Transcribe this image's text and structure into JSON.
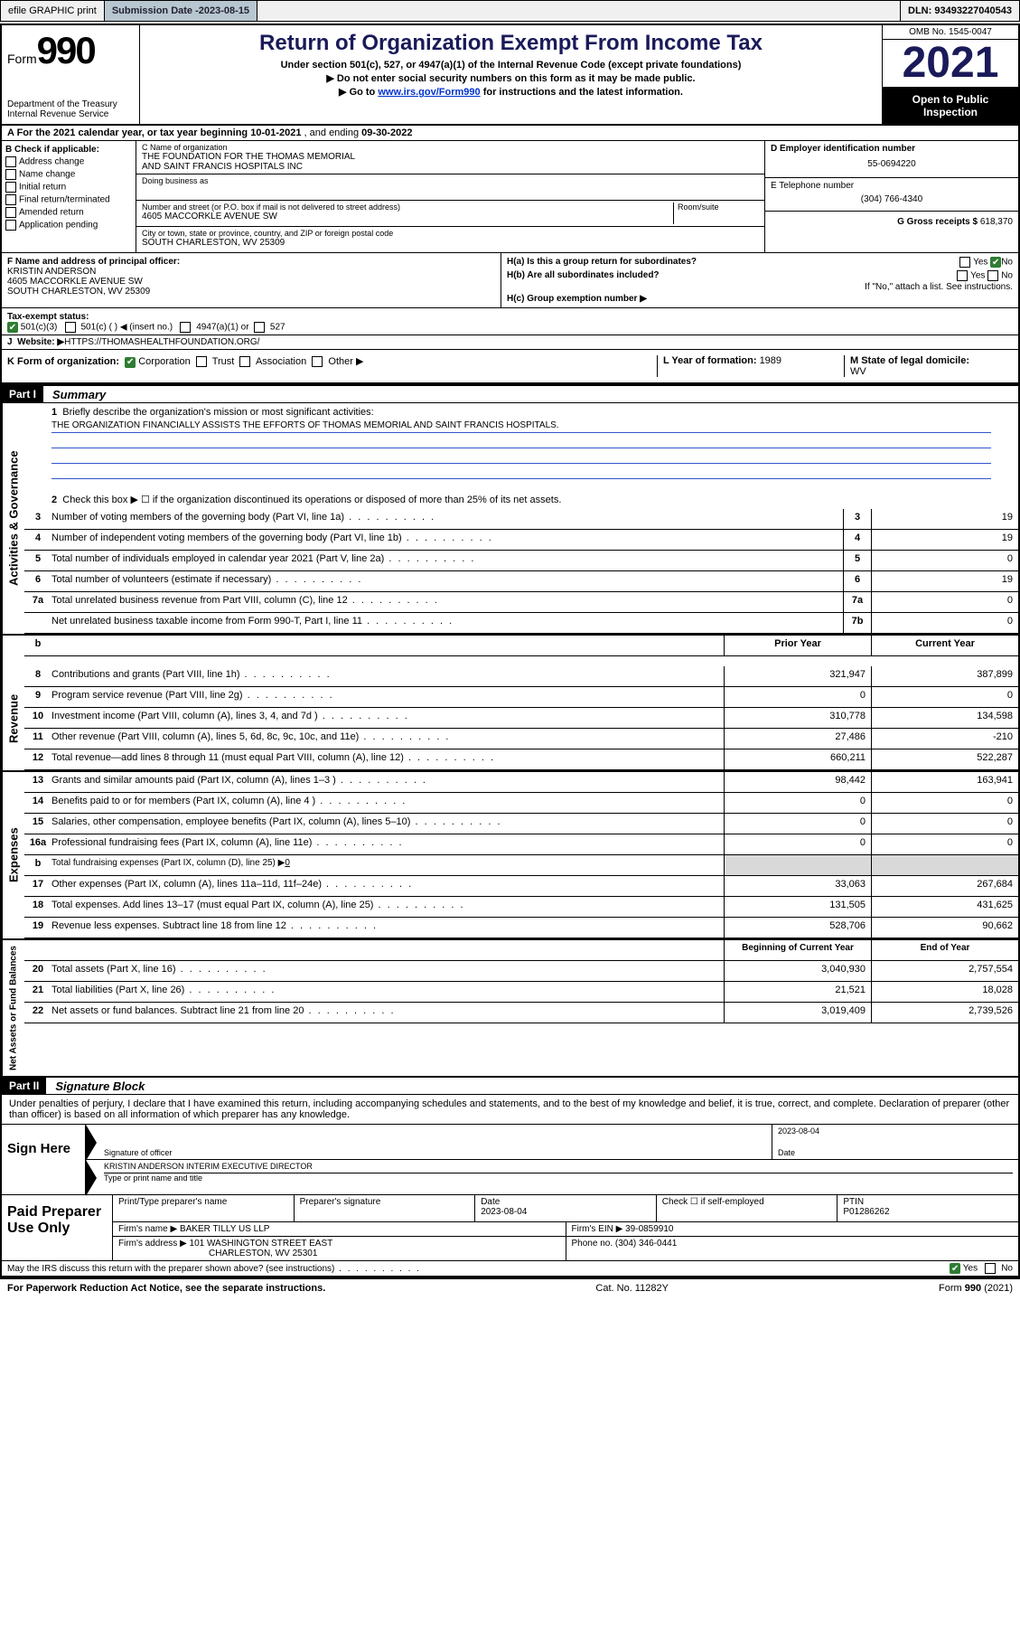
{
  "topbar": {
    "efile": "efile GRAPHIC print",
    "sub_lbl": "Submission Date - ",
    "sub_date": "2023-08-15",
    "dln_lbl": "DLN: ",
    "dln": "93493227040543"
  },
  "hdr": {
    "form_word": "Form",
    "form_num": "990",
    "dept": "Department of the Treasury",
    "irs": "Internal Revenue Service",
    "title": "Return of Organization Exempt From Income Tax",
    "sub1": "Under section 501(c), 527, or 4947(a)(1) of the Internal Revenue Code (except private foundations)",
    "sub2": "Do not enter social security numbers on this form as it may be made public.",
    "sub3_pre": "Go to ",
    "sub3_link": "www.irs.gov/Form990",
    "sub3_post": " for instructions and the latest information.",
    "omb": "OMB No. 1545-0047",
    "year": "2021",
    "open": "Open to Public Inspection"
  },
  "a_line": {
    "pre": "A For the 2021 calendar year, or tax year beginning ",
    "begin": "10-01-2021",
    "mid": " , and ending ",
    "end": "09-30-2022"
  },
  "b": {
    "hdr": "B Check if applicable:",
    "o1": "Address change",
    "o2": "Name change",
    "o3": "Initial return",
    "o4": "Final return/terminated",
    "o5": "Amended return",
    "o6": "Application pending"
  },
  "c": {
    "name_lbl": "C Name of organization",
    "name1": "THE FOUNDATION FOR THE THOMAS MEMORIAL",
    "name2": "AND SAINT FRANCIS HOSPITALS INC",
    "dba_lbl": "Doing business as",
    "addr_lbl": "Number and street (or P.O. box if mail is not delivered to street address)",
    "room_lbl": "Room/suite",
    "addr": "4605 MACCORKLE AVENUE SW",
    "city_lbl": "City or town, state or province, country, and ZIP or foreign postal code",
    "city": "SOUTH CHARLESTON, WV  25309"
  },
  "d": {
    "lbl": "D Employer identification number",
    "val": "55-0694220"
  },
  "e": {
    "lbl": "E Telephone number",
    "val": "(304) 766-4340"
  },
  "g": {
    "lbl": "G Gross receipts $ ",
    "val": "618,370"
  },
  "f": {
    "lbl": "F  Name and address of principal officer:",
    "name": "KRISTIN ANDERSON",
    "addr1": "4605 MACCORKLE AVENUE SW",
    "addr2": "SOUTH CHARLESTON, WV  25309"
  },
  "h": {
    "a_lbl": "H(a)  Is this a group return for subordinates?",
    "a_yes": "Yes",
    "a_no": "No",
    "b_lbl": "H(b)  Are all subordinates included?",
    "b_yes": "Yes",
    "b_no": "No",
    "b_note": "If \"No,\" attach a list. See instructions.",
    "c_lbl": "H(c)  Group exemption number ▶"
  },
  "i": {
    "lbl": "Tax-exempt status:",
    "o1": "501(c)(3)",
    "o2": "501(c) (   ) ◀ (insert no.)",
    "o3": "4947(a)(1) or",
    "o4": "527"
  },
  "j": {
    "lbl": "Website: ▶ ",
    "val": "HTTPS://THOMASHEALTHFOUNDATION.ORG/"
  },
  "k": {
    "lbl": "K Form of organization:",
    "o1": "Corporation",
    "o2": "Trust",
    "o3": "Association",
    "o4": "Other ▶",
    "l_lbl": "L Year of formation: ",
    "l_val": "1989",
    "m_lbl": "M State of legal domicile:",
    "m_val": "WV"
  },
  "part1": {
    "bar": "Part I",
    "title": "Summary"
  },
  "summary": {
    "l1_lbl": "1",
    "l1_txt": "Briefly describe the organization's mission or most significant activities:",
    "l1_mission": "THE ORGANIZATION FINANCIALLY ASSISTS THE EFFORTS OF THOMAS MEMORIAL AND SAINT FRANCIS HOSPITALS.",
    "l2_lbl": "2",
    "l2_txt": "Check this box ▶ ☐  if the organization discontinued its operations or disposed of more than 25% of its net assets.",
    "rows": [
      {
        "n": "3",
        "d": "Number of voting members of the governing body (Part VI, line 1a)",
        "cn": "3",
        "v": "19"
      },
      {
        "n": "4",
        "d": "Number of independent voting members of the governing body (Part VI, line 1b)",
        "cn": "4",
        "v": "19"
      },
      {
        "n": "5",
        "d": "Total number of individuals employed in calendar year 2021 (Part V, line 2a)",
        "cn": "5",
        "v": "0"
      },
      {
        "n": "6",
        "d": "Total number of volunteers (estimate if necessary)",
        "cn": "6",
        "v": "19"
      },
      {
        "n": "7a",
        "d": "Total unrelated business revenue from Part VIII, column (C), line 12",
        "cn": "7a",
        "v": "0"
      },
      {
        "n": "",
        "d": "Net unrelated business taxable income from Form 990-T, Part I, line 11",
        "cn": "7b",
        "v": "0"
      }
    ],
    "hdr_b": "b",
    "py_lbl": "Prior Year",
    "cy_lbl": "Current Year"
  },
  "revenue": {
    "side": "Revenue",
    "rows": [
      {
        "n": "8",
        "d": "Contributions and grants (Part VIII, line 1h)",
        "p": "321,947",
        "c": "387,899"
      },
      {
        "n": "9",
        "d": "Program service revenue (Part VIII, line 2g)",
        "p": "0",
        "c": "0"
      },
      {
        "n": "10",
        "d": "Investment income (Part VIII, column (A), lines 3, 4, and 7d )",
        "p": "310,778",
        "c": "134,598"
      },
      {
        "n": "11",
        "d": "Other revenue (Part VIII, column (A), lines 5, 6d, 8c, 9c, 10c, and 11e)",
        "p": "27,486",
        "c": "-210"
      },
      {
        "n": "12",
        "d": "Total revenue—add lines 8 through 11 (must equal Part VIII, column (A), line 12)",
        "p": "660,211",
        "c": "522,287"
      }
    ]
  },
  "expenses": {
    "side": "Expenses",
    "rows": [
      {
        "n": "13",
        "d": "Grants and similar amounts paid (Part IX, column (A), lines 1–3 )",
        "p": "98,442",
        "c": "163,941"
      },
      {
        "n": "14",
        "d": "Benefits paid to or for members (Part IX, column (A), line 4 )",
        "p": "0",
        "c": "0"
      },
      {
        "n": "15",
        "d": "Salaries, other compensation, employee benefits (Part IX, column (A), lines 5–10)",
        "p": "0",
        "c": "0"
      },
      {
        "n": "16a",
        "d": "Professional fundraising fees (Part IX, column (A), line 11e)",
        "p": "0",
        "c": "0"
      }
    ],
    "b_row": {
      "n": "b",
      "d": "Total fundraising expenses (Part IX, column (D), line 25) ▶",
      "v": "0"
    },
    "rows2": [
      {
        "n": "17",
        "d": "Other expenses (Part IX, column (A), lines 11a–11d, 11f–24e)",
        "p": "33,063",
        "c": "267,684"
      },
      {
        "n": "18",
        "d": "Total expenses. Add lines 13–17 (must equal Part IX, column (A), line 25)",
        "p": "131,505",
        "c": "431,625"
      },
      {
        "n": "19",
        "d": "Revenue less expenses. Subtract line 18 from line 12",
        "p": "528,706",
        "c": "90,662"
      }
    ]
  },
  "netassets": {
    "side": "Net Assets or Fund Balances",
    "bey_lbl": "Beginning of Current Year",
    "eoy_lbl": "End of Year",
    "rows": [
      {
        "n": "20",
        "d": "Total assets (Part X, line 16)",
        "p": "3,040,930",
        "c": "2,757,554"
      },
      {
        "n": "21",
        "d": "Total liabilities (Part X, line 26)",
        "p": "21,521",
        "c": "18,028"
      },
      {
        "n": "22",
        "d": "Net assets or fund balances. Subtract line 21 from line 20",
        "p": "3,019,409",
        "c": "2,739,526"
      }
    ]
  },
  "part2": {
    "bar": "Part II",
    "title": "Signature Block"
  },
  "sig": {
    "decl": "Under penalties of perjury, I declare that I have examined this return, including accompanying schedules and statements, and to the best of my knowledge and belief, it is true, correct, and complete. Declaration of preparer (other than officer) is based on all information of which preparer has any knowledge.",
    "sign_here": "Sign Here",
    "sig_of": "Signature of officer",
    "date_lbl": "Date",
    "date": "2023-08-04",
    "name": "KRISTIN ANDERSON  INTERIM EXECUTIVE DIRECTOR",
    "type_lbl": "Type or print name and title"
  },
  "paid": {
    "title": "Paid Preparer Use Only",
    "h1": "Print/Type preparer's name",
    "h2": "Preparer's signature",
    "h3": "Date",
    "h3v": "2023-08-04",
    "h4": "Check ☐ if self-employed",
    "h5": "PTIN",
    "h5v": "P01286262",
    "firm_lbl": "Firm's name    ▶ ",
    "firm": "BAKER TILLY US LLP",
    "ein_lbl": "Firm's EIN ▶ ",
    "ein": "39-0859910",
    "addr_lbl": "Firm's address ▶ ",
    "addr1": "101 WASHINGTON STREET EAST",
    "addr2": "CHARLESTON, WV  25301",
    "phone_lbl": "Phone no. ",
    "phone": "(304) 346-0441"
  },
  "discuss": {
    "txt": "May the IRS discuss this return with the preparer shown above? (see instructions)",
    "yes": "Yes",
    "no": "No"
  },
  "footer": {
    "left": "For Paperwork Reduction Act Notice, see the separate instructions.",
    "mid": "Cat. No. 11282Y",
    "right": "Form 990 (2021)"
  },
  "side_ag": "Activities & Governance"
}
